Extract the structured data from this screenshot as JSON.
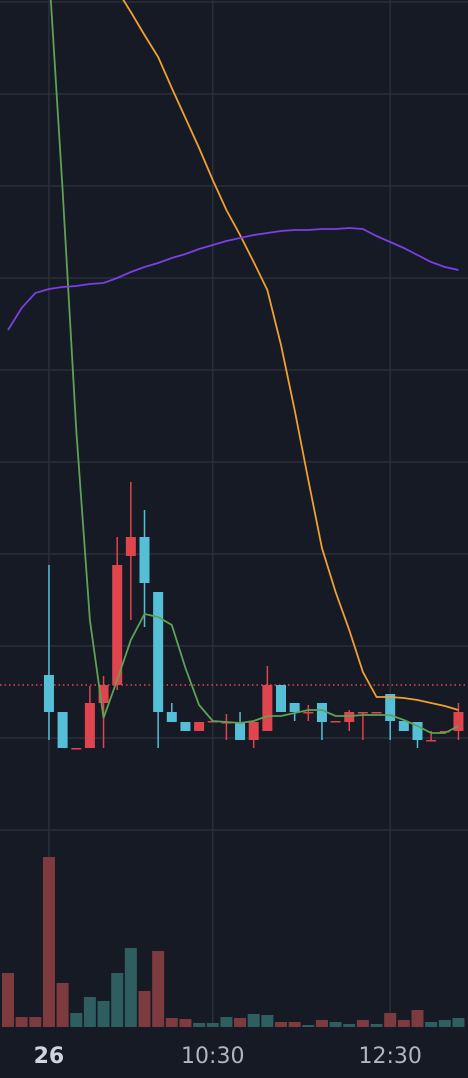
{
  "chart_data": {
    "type": "candlestick",
    "categories": [
      null,
      null,
      null,
      "26",
      null,
      null,
      null,
      null,
      null,
      null,
      null,
      null,
      null,
      null,
      null,
      "10:30",
      null,
      null,
      null,
      null,
      null,
      null,
      null,
      null,
      null,
      null,
      null,
      null,
      "12:30",
      null,
      null,
      null,
      null,
      null
    ],
    "open": [
      null,
      null,
      null,
      155,
      118,
      81,
      82,
      127,
      145,
      274,
      293,
      238,
      118,
      108,
      99,
      109,
      108,
      108,
      90,
      99,
      145,
      127,
      118,
      127,
      109,
      108,
      118,
      118,
      136,
      109,
      108,
      90,
      99,
      99
    ],
    "high": [
      null,
      null,
      null,
      265,
      118,
      82,
      144,
      154,
      293,
      348,
      320,
      238,
      127,
      108,
      108,
      109,
      116,
      118,
      108,
      164,
      145,
      127,
      125,
      127,
      109,
      120,
      118,
      118,
      136,
      109,
      108,
      99,
      99,
      127
    ],
    "low": [
      null,
      null,
      null,
      90,
      82,
      81,
      82,
      82,
      140,
      210,
      203,
      82,
      108,
      99,
      99,
      109,
      90,
      90,
      82,
      99,
      118,
      109,
      109,
      90,
      109,
      99,
      90,
      118,
      90,
      99,
      82,
      90,
      99,
      90
    ],
    "close": [
      null,
      null,
      null,
      118,
      82,
      82,
      127,
      145,
      265,
      293,
      247,
      118,
      108,
      99,
      108,
      109,
      108,
      90,
      108,
      145,
      118,
      118,
      118,
      108,
      109,
      118,
      118,
      118,
      109,
      99,
      90,
      90,
      99,
      118
    ],
    "up_color": "#e0444c",
    "down_color": "#56bfd8",
    "ylim": [
      0,
      830
    ],
    "yticks": [
      0,
      92,
      184,
      276,
      368,
      460,
      552,
      644,
      736,
      828
    ],
    "grid": true,
    "price_line": 145,
    "series": [
      {
        "color": "#5fa155",
        "values": [
          null,
          null,
          null,
          860,
          640,
          400,
          210,
          112,
          150,
          190,
          216,
          213,
          205,
          162,
          125,
          109,
          108,
          107,
          109,
          114,
          114,
          117,
          120,
          120,
          114,
          114,
          115,
          115,
          115,
          110,
          104,
          97,
          97,
          104
        ]
      },
      {
        "color": "#f0a030",
        "values": [
          null,
          null,
          null,
          null,
          null,
          null,
          null,
          null,
          840,
          818,
          795,
          773,
          742,
          712,
          682,
          650,
          620,
          595,
          568,
          540,
          485,
          420,
          350,
          282,
          238,
          200,
          158,
          133,
          133,
          132,
          130,
          127,
          124,
          120
        ]
      },
      {
        "color": "#7b3fe4",
        "values": [
          500,
          522,
          537,
          541,
          543,
          544,
          546,
          547,
          552,
          558,
          563,
          567,
          572,
          576,
          581,
          585,
          589,
          592,
          595,
          597,
          599,
          600,
          600,
          601,
          601,
          602,
          601,
          594,
          588,
          582,
          575,
          568,
          563,
          560
        ]
      }
    ],
    "volume": [
      54,
      10,
      10,
      170,
      44,
      14,
      30,
      26,
      54,
      79,
      36,
      76,
      9,
      8,
      4,
      4,
      10,
      9,
      13,
      12,
      5,
      5,
      2,
      7,
      5,
      3,
      7,
      3,
      14,
      7,
      17,
      5,
      7,
      9
    ],
    "volume_up": [
      true,
      true,
      true,
      true,
      true,
      false,
      false,
      false,
      false,
      false,
      true,
      true,
      true,
      true,
      false,
      false,
      false,
      true,
      false,
      false,
      true,
      true,
      false,
      true,
      false,
      false,
      true,
      false,
      true,
      true,
      true,
      false,
      false,
      false
    ],
    "volume_up_color": "#7d3a3f",
    "volume_down_color": "#2e5e60",
    "volume_lim": [
      0,
      196
    ]
  }
}
